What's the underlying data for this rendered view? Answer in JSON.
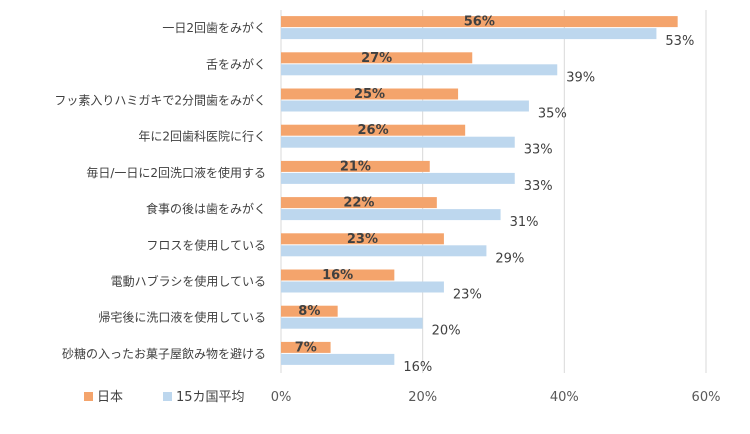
{
  "chart_data": {
    "type": "bar",
    "orientation": "horizontal",
    "categories": [
      "一日2回歯をみがく",
      "舌をみがく",
      "フッ素入りハミガキで2分間歯をみがく",
      "年に2回歯科医院に行く",
      "毎日/一日に2回洗口液を使用する",
      "食事の後は歯をみがく",
      "フロスを使用している",
      "電動ハブラシを使用している",
      "帰宅後に洗口液を使用している",
      "砂糖の入ったお菓子屋飲み物を避ける"
    ],
    "series": [
      {
        "name": "日本",
        "color": "#f4a46c",
        "values": [
          56,
          27,
          25,
          26,
          21,
          22,
          23,
          16,
          8,
          7
        ]
      },
      {
        "name": "15カ国平均",
        "color": "#bdd7ee",
        "values": [
          53,
          39,
          35,
          33,
          33,
          31,
          29,
          23,
          20,
          16
        ]
      }
    ],
    "value_suffix": "%",
    "xlim": [
      0,
      60
    ],
    "xticks": [
      "0%",
      "20%",
      "40%",
      "60%"
    ],
    "grid": true,
    "legend_position": "bottom-left"
  }
}
